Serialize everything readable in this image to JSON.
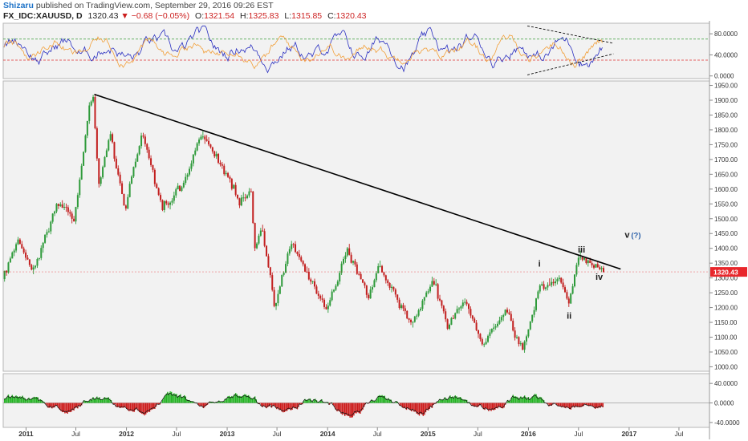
{
  "header": {
    "user": "Shizaru",
    "published": "published on TradingView.com, September 29, 2016 09:26 EST",
    "symbol": "FX_IDC:XAUUSD, D",
    "last": "1320.43",
    "change": "▼ −0.68 (−0.05%)",
    "o_label": "O:",
    "o_value": "1321.54",
    "h_label": "H:",
    "h_value": "1325.83",
    "l_label": "L:",
    "l_value": "1315.85",
    "c_label": "C:",
    "c_value": "1320.43"
  },
  "colors": {
    "up_candle": "#2e9a3a",
    "down_candle": "#c21f1f",
    "trendline": "#000000",
    "osc_blue": "#2a2fc0",
    "osc_orange": "#f2a03a",
    "hist_green": "#22b322",
    "hist_red": "#cc1a1a",
    "price_tag": "#e8262b",
    "background": "#ffffff",
    "panel_bg": "#f2f2f2"
  },
  "chart_data": [
    {
      "type": "candlestick",
      "title": "",
      "x_ticks": [
        "2011",
        "Jul",
        "2012",
        "Jul",
        "2013",
        "Jul",
        "2014",
        "Jul",
        "2015",
        "Jul",
        "2016",
        "Jul",
        "2017",
        "Jul"
      ],
      "y_ticks": [
        "1000.00",
        "1050.00",
        "1100.00",
        "1150.00",
        "1200.00",
        "1250.00",
        "1300.00",
        "1350.00",
        "1400.00",
        "1450.00",
        "1500.00",
        "1550.00",
        "1600.00",
        "1650.00",
        "1700.00",
        "1750.00",
        "1800.00",
        "1850.00",
        "1900.00",
        "1950.00"
      ],
      "ylim": [
        985,
        1965
      ],
      "xlim": [
        "2010-10-10",
        "2017-10-20"
      ],
      "last_price_label": "1320.43",
      "price_path": [
        [
          "2010-10-12",
          1300
        ],
        [
          "2010-12-06",
          1420
        ],
        [
          "2011-01-28",
          1320
        ],
        [
          "2011-03-10",
          1430
        ],
        [
          "2011-05-02",
          1560
        ],
        [
          "2011-06-30",
          1495
        ],
        [
          "2011-08-22",
          1880
        ],
        [
          "2011-09-06",
          1920
        ],
        [
          "2011-09-26",
          1620
        ],
        [
          "2011-11-08",
          1790
        ],
        [
          "2011-12-29",
          1530
        ],
        [
          "2012-02-28",
          1790
        ],
        [
          "2012-05-16",
          1530
        ],
        [
          "2012-08-01",
          1620
        ],
        [
          "2012-10-04",
          1795
        ],
        [
          "2012-12-28",
          1660
        ],
        [
          "2013-02-20",
          1560
        ],
        [
          "2013-04-02",
          1600
        ],
        [
          "2013-04-15",
          1390
        ],
        [
          "2013-05-10",
          1470
        ],
        [
          "2013-06-28",
          1200
        ],
        [
          "2013-08-27",
          1420
        ],
        [
          "2013-12-31",
          1190
        ],
        [
          "2014-03-17",
          1390
        ],
        [
          "2014-06-02",
          1240
        ],
        [
          "2014-07-10",
          1340
        ],
        [
          "2014-11-06",
          1140
        ],
        [
          "2015-01-22",
          1300
        ],
        [
          "2015-03-17",
          1145
        ],
        [
          "2015-05-18",
          1230
        ],
        [
          "2015-07-24",
          1080
        ],
        [
          "2015-10-14",
          1190
        ],
        [
          "2015-12-17",
          1050
        ],
        [
          "2016-02-11",
          1260
        ],
        [
          "2016-03-11",
          1275
        ],
        [
          "2016-05-02",
          1300
        ],
        [
          "2016-05-30",
          1210
        ],
        [
          "2016-07-06",
          1370
        ],
        [
          "2016-08-15",
          1350
        ],
        [
          "2016-09-29",
          1320
        ]
      ],
      "trendline": [
        [
          "2011-09-06",
          1920
        ],
        [
          "2016-12-01",
          1330
        ]
      ],
      "annotations": [
        {
          "text": "i",
          "x": "2016-02-10",
          "y": 1338
        },
        {
          "text": "ii",
          "x": "2016-05-28",
          "y": 1162
        },
        {
          "text": "iii",
          "x": "2016-07-12",
          "y": 1386
        },
        {
          "text": "iv",
          "x": "2016-09-14",
          "y": 1293
        },
        {
          "text": "v",
          "x": "2016-12-25",
          "y": 1436
        },
        {
          "text": "(?)",
          "x": "2017-01-26",
          "y": 1436
        }
      ]
    },
    {
      "type": "line",
      "title": "",
      "y_ticks": [
        "0.0000",
        "40.0000",
        "80.0000"
      ],
      "ylim": [
        -5,
        100
      ],
      "reference_lines": [
        70,
        30
      ],
      "series": [
        {
          "color": "#2a2fc0"
        },
        {
          "color": "#f2a03a"
        }
      ],
      "triangle": {
        "upper": [
          [
            "2015-12-28",
            95
          ],
          [
            "2016-11-05",
            62
          ]
        ],
        "lower": [
          [
            "2015-12-28",
            2
          ],
          [
            "2016-11-05",
            42
          ]
        ]
      }
    },
    {
      "type": "histogram",
      "title": "",
      "y_ticks": [
        "-40.0000",
        "0.0000",
        "40.0000"
      ],
      "ylim": [
        -50,
        60
      ]
    }
  ]
}
